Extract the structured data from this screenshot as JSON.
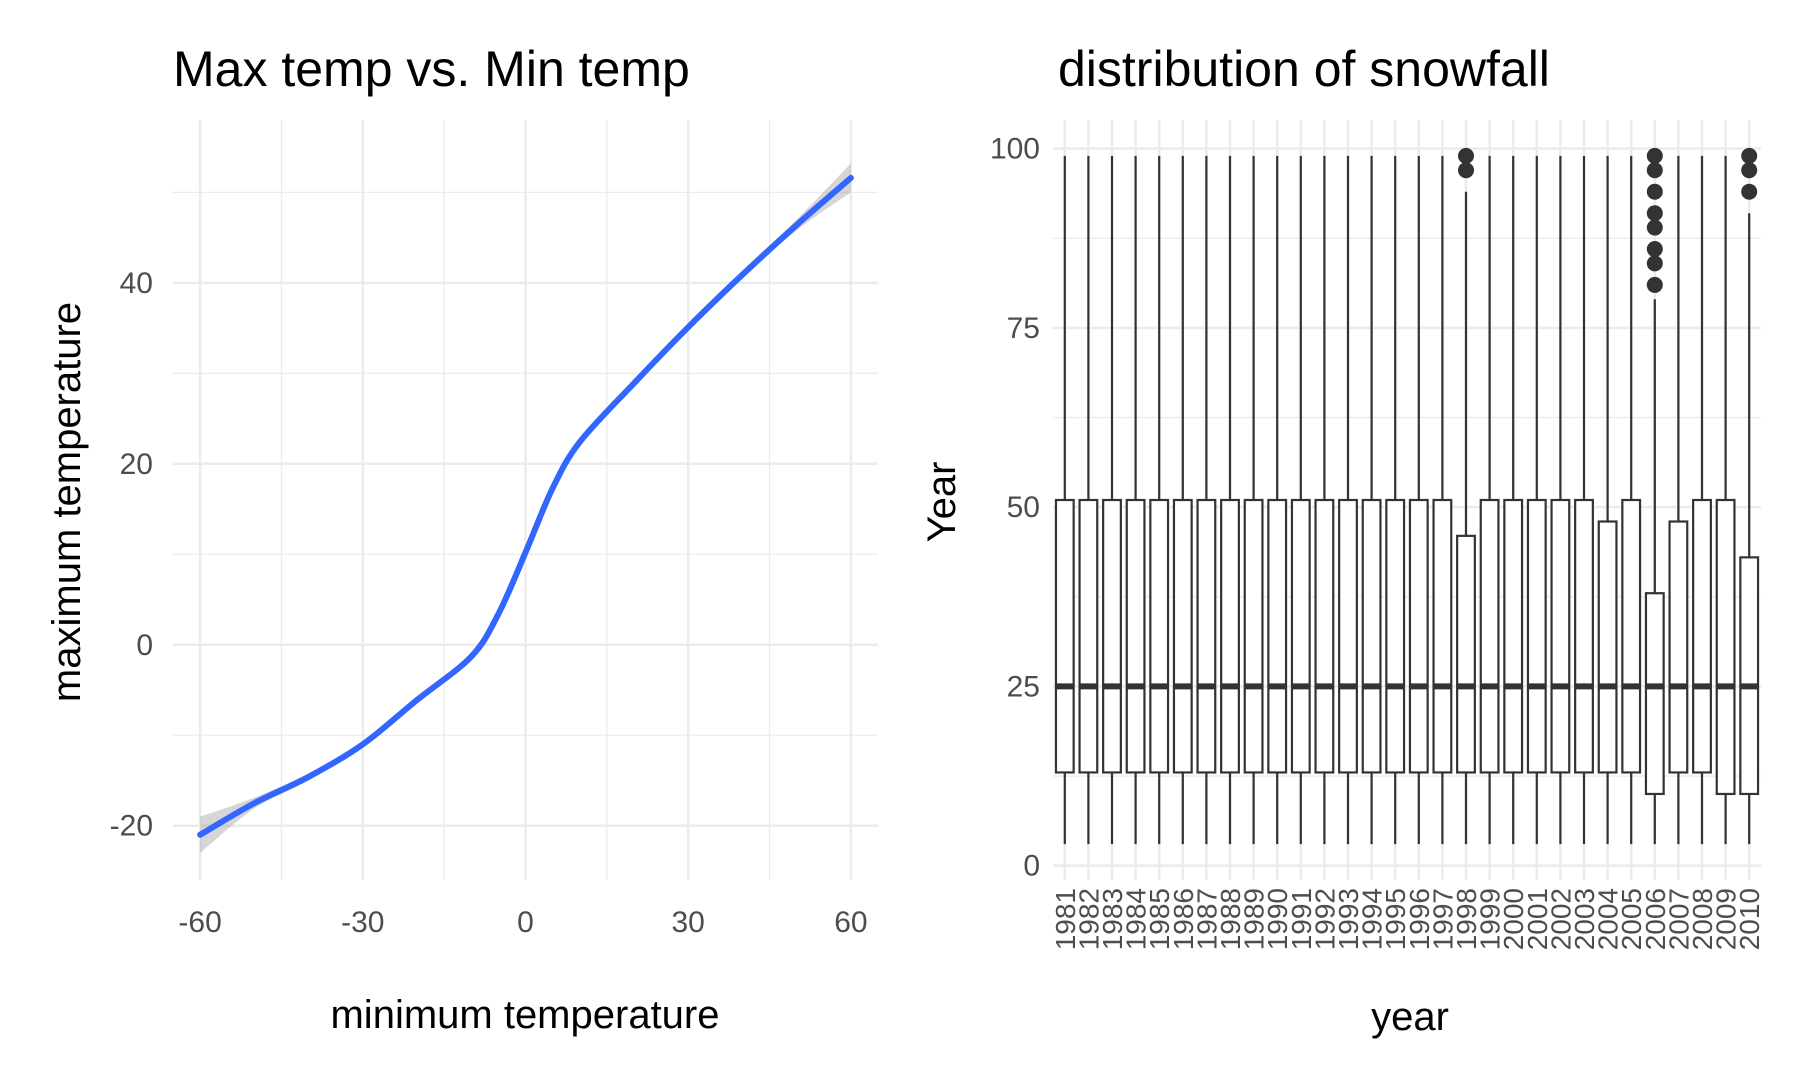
{
  "chart_data": [
    {
      "type": "line",
      "title": "Max temp vs. Min temp",
      "xlabel": "minimum temperature",
      "ylabel": "maximum temperature",
      "xlim": [
        -65,
        65
      ],
      "ylim": [
        -26,
        58
      ],
      "x_ticks": [
        -60,
        -30,
        0,
        30,
        60
      ],
      "x_tick_labels": [
        "-60",
        "-30",
        "0",
        "30",
        "60"
      ],
      "y_ticks": [
        -20,
        0,
        20,
        40
      ],
      "y_tick_labels": [
        "-20",
        "0",
        "20",
        "40"
      ],
      "grid": true,
      "series": [
        {
          "color": "#3366ff",
          "smooth": true,
          "confidence_band": true,
          "x": [
            -60,
            -50,
            -40,
            -30,
            -20,
            -10,
            -5,
            0,
            5,
            10,
            20,
            30,
            40,
            50,
            60
          ],
          "y": [
            -21.0,
            -17.5,
            -14.6,
            -11.0,
            -6.1,
            -1.3,
            3.4,
            10.2,
            17.3,
            22.4,
            28.9,
            35.1,
            40.9,
            46.4,
            51.6
          ],
          "band_halfwidth": [
            2.0,
            0.6,
            0.4,
            0.3,
            0.3,
            0.3,
            0.3,
            0.3,
            0.3,
            0.3,
            0.3,
            0.3,
            0.4,
            0.6,
            1.6
          ]
        }
      ]
    },
    {
      "type": "box",
      "title": "distribution of snowfall",
      "xlabel": "year",
      "ylabel": "Year",
      "ylim": [
        -2,
        104
      ],
      "y_ticks": [
        0,
        25,
        50,
        75,
        100
      ],
      "y_tick_labels": [
        "0",
        "25",
        "50",
        "75",
        "100"
      ],
      "grid": true,
      "categories": [
        "1981",
        "1982",
        "1983",
        "1984",
        "1985",
        "1986",
        "1987",
        "1988",
        "1989",
        "1990",
        "1991",
        "1992",
        "1993",
        "1994",
        "1995",
        "1996",
        "1997",
        "1998",
        "1999",
        "2000",
        "2001",
        "2002",
        "2003",
        "2004",
        "2005",
        "2006",
        "2007",
        "2008",
        "2009",
        "2010"
      ],
      "boxes": [
        {
          "min": 3,
          "q1": 13,
          "median": 25,
          "q3": 51,
          "max": 99,
          "outliers": []
        },
        {
          "min": 3,
          "q1": 13,
          "median": 25,
          "q3": 51,
          "max": 99,
          "outliers": []
        },
        {
          "min": 3,
          "q1": 13,
          "median": 25,
          "q3": 51,
          "max": 99,
          "outliers": []
        },
        {
          "min": 3,
          "q1": 13,
          "median": 25,
          "q3": 51,
          "max": 99,
          "outliers": []
        },
        {
          "min": 3,
          "q1": 13,
          "median": 25,
          "q3": 51,
          "max": 99,
          "outliers": []
        },
        {
          "min": 3,
          "q1": 13,
          "median": 25,
          "q3": 51,
          "max": 99,
          "outliers": []
        },
        {
          "min": 3,
          "q1": 13,
          "median": 25,
          "q3": 51,
          "max": 99,
          "outliers": []
        },
        {
          "min": 3,
          "q1": 13,
          "median": 25,
          "q3": 51,
          "max": 99,
          "outliers": []
        },
        {
          "min": 3,
          "q1": 13,
          "median": 25,
          "q3": 51,
          "max": 99,
          "outliers": []
        },
        {
          "min": 3,
          "q1": 13,
          "median": 25,
          "q3": 51,
          "max": 99,
          "outliers": []
        },
        {
          "min": 3,
          "q1": 13,
          "median": 25,
          "q3": 51,
          "max": 99,
          "outliers": []
        },
        {
          "min": 3,
          "q1": 13,
          "median": 25,
          "q3": 51,
          "max": 99,
          "outliers": []
        },
        {
          "min": 3,
          "q1": 13,
          "median": 25,
          "q3": 51,
          "max": 99,
          "outliers": []
        },
        {
          "min": 3,
          "q1": 13,
          "median": 25,
          "q3": 51,
          "max": 99,
          "outliers": []
        },
        {
          "min": 3,
          "q1": 13,
          "median": 25,
          "q3": 51,
          "max": 99,
          "outliers": []
        },
        {
          "min": 3,
          "q1": 13,
          "median": 25,
          "q3": 51,
          "max": 99,
          "outliers": []
        },
        {
          "min": 3,
          "q1": 13,
          "median": 25,
          "q3": 51,
          "max": 99,
          "outliers": []
        },
        {
          "min": 3,
          "q1": 13,
          "median": 25,
          "q3": 46,
          "max": 94,
          "outliers": [
            97,
            99
          ]
        },
        {
          "min": 3,
          "q1": 13,
          "median": 25,
          "q3": 51,
          "max": 99,
          "outliers": []
        },
        {
          "min": 3,
          "q1": 13,
          "median": 25,
          "q3": 51,
          "max": 99,
          "outliers": []
        },
        {
          "min": 3,
          "q1": 13,
          "median": 25,
          "q3": 51,
          "max": 99,
          "outliers": []
        },
        {
          "min": 3,
          "q1": 13,
          "median": 25,
          "q3": 51,
          "max": 99,
          "outliers": []
        },
        {
          "min": 3,
          "q1": 13,
          "median": 25,
          "q3": 51,
          "max": 99,
          "outliers": []
        },
        {
          "min": 3,
          "q1": 13,
          "median": 25,
          "q3": 48,
          "max": 99,
          "outliers": []
        },
        {
          "min": 3,
          "q1": 13,
          "median": 25,
          "q3": 51,
          "max": 99,
          "outliers": []
        },
        {
          "min": 3,
          "q1": 10,
          "median": 25,
          "q3": 38,
          "max": 79,
          "outliers": [
            81,
            84,
            86,
            89,
            91,
            94,
            97,
            99
          ]
        },
        {
          "min": 3,
          "q1": 13,
          "median": 25,
          "q3": 48,
          "max": 99,
          "outliers": []
        },
        {
          "min": 3,
          "q1": 13,
          "median": 25,
          "q3": 51,
          "max": 99,
          "outliers": []
        },
        {
          "min": 3,
          "q1": 10,
          "median": 25,
          "q3": 51,
          "max": 99,
          "outliers": []
        },
        {
          "min": 3,
          "q1": 10,
          "median": 25,
          "q3": 43,
          "max": 91,
          "outliers": [
            94,
            97,
            99
          ]
        }
      ]
    }
  ]
}
